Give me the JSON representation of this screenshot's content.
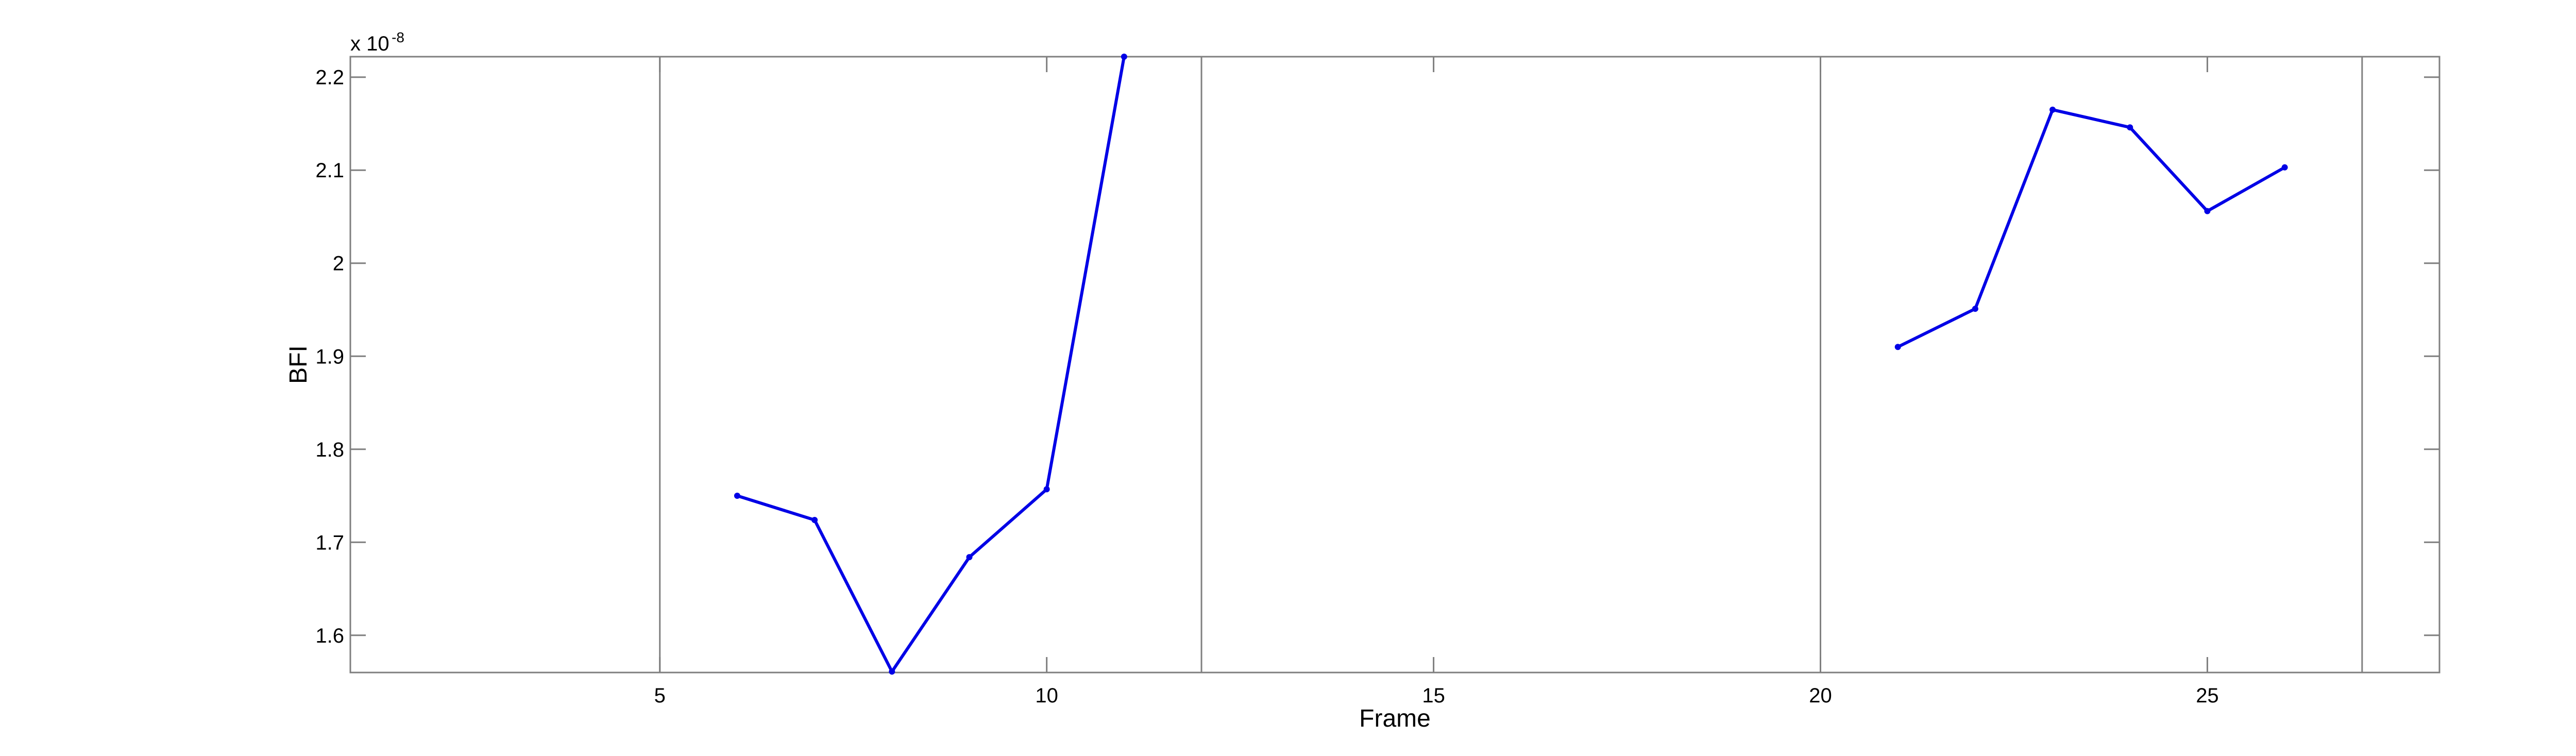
{
  "chart_data": {
    "type": "line",
    "title": "",
    "xlabel": "Frame",
    "ylabel": "BFI",
    "y_exponent_base": "x 10",
    "y_exponent_power": "-8",
    "xlim": [
      1,
      28
    ],
    "ylim": [
      1.56,
      2.222
    ],
    "x_ticks": [
      5,
      10,
      15,
      20,
      25
    ],
    "x_tick_labels": [
      "5",
      "10",
      "15",
      "20",
      "25"
    ],
    "y_ticks": [
      1.6,
      1.7,
      1.8,
      1.9,
      2.0,
      2.1,
      2.2
    ],
    "y_tick_labels": [
      "1.6",
      "1.7",
      "1.8",
      "1.9",
      "2",
      "2.1",
      "2.2"
    ],
    "vertical_lines": [
      5,
      12,
      20,
      27
    ],
    "grid": false,
    "legend": "none",
    "series": [
      {
        "color": "#0000e6",
        "segments": [
          {
            "x": [
              6,
              7,
              8,
              9,
              10,
              11
            ],
            "y": [
              1.75,
              1.724,
              1.561,
              1.684,
              1.757,
              2.222
            ]
          },
          {
            "x": [
              21,
              22,
              23,
              24,
              25,
              26
            ],
            "y": [
              1.91,
              1.951,
              2.165,
              2.146,
              2.056,
              2.103
            ]
          }
        ]
      }
    ],
    "colors": {
      "line": "#0000e6",
      "axes": "#7f7f7f",
      "vline": "#808080"
    }
  }
}
